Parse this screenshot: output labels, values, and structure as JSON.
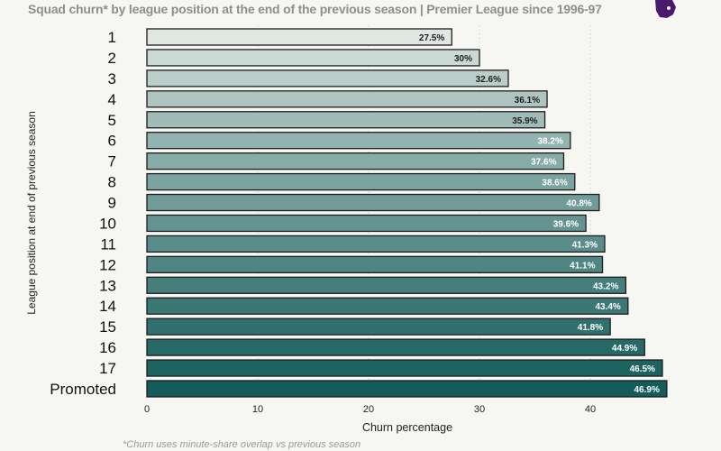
{
  "chart_data": {
    "type": "bar",
    "orientation": "horizontal",
    "title": "Squad churn* by league position at the end of the previous season | Premier League since 1996-97",
    "xlabel": "Churn percentage",
    "ylabel": "League position at end of previous season",
    "xlim": [
      0,
      47
    ],
    "xticks": [
      0,
      10,
      20,
      30,
      40
    ],
    "grid": "vertical dotted",
    "categories": [
      "1",
      "2",
      "3",
      "4",
      "5",
      "6",
      "7",
      "8",
      "9",
      "10",
      "11",
      "12",
      "13",
      "14",
      "15",
      "16",
      "17",
      "Promoted"
    ],
    "values": [
      27.5,
      30,
      32.6,
      36.1,
      35.9,
      38.2,
      37.6,
      38.6,
      40.8,
      39.6,
      41.3,
      41.1,
      43.2,
      43.4,
      41.8,
      44.9,
      46.5,
      46.9
    ],
    "data_labels": [
      "27.5%",
      "30%",
      "32.6%",
      "36.1%",
      "35.9%",
      "38.2%",
      "37.6%",
      "38.6%",
      "40.8%",
      "39.6%",
      "41.3%",
      "41.1%",
      "43.2%",
      "43.4%",
      "41.8%",
      "44.9%",
      "46.5%",
      "46.9%"
    ],
    "footnote": "*Churn uses minute-share overlap vs previous season",
    "colors": {
      "light": "#e0e7e3",
      "dark": "#135c5a",
      "logo": "#4a1a6e"
    }
  }
}
